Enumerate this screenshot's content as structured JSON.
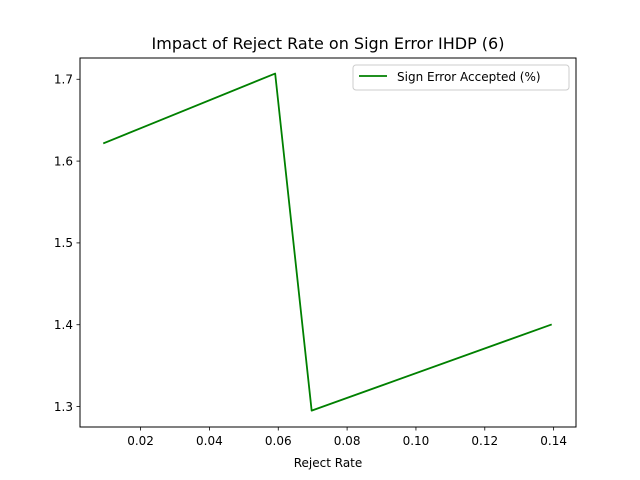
{
  "chart_data": {
    "type": "line",
    "title": "Impact of Reject Rate on Sign Error IHDP (6)",
    "xlabel": "Reject Rate",
    "ylabel": "",
    "xlim": [
      0.0024,
      0.1465
    ],
    "ylim": [
      1.275,
      1.726
    ],
    "xticks": [
      0.02,
      0.04,
      0.06,
      0.08,
      0.1,
      0.12,
      0.14
    ],
    "xtick_labels": [
      "0.02",
      "0.04",
      "0.06",
      "0.08",
      "0.10",
      "0.12",
      "0.14"
    ],
    "yticks": [
      1.3,
      1.4,
      1.5,
      1.6,
      1.7
    ],
    "ytick_labels": [
      "1.3",
      "1.4",
      "1.5",
      "1.6",
      "1.7"
    ],
    "grid": false,
    "legend_position": "upper right",
    "series": [
      {
        "name": "Sign Error Accepted (%)",
        "color": "#008000",
        "x": [
          0.0094,
          0.0591,
          0.0697,
          0.1392
        ],
        "y": [
          1.622,
          1.707,
          1.295,
          1.4
        ]
      }
    ]
  }
}
